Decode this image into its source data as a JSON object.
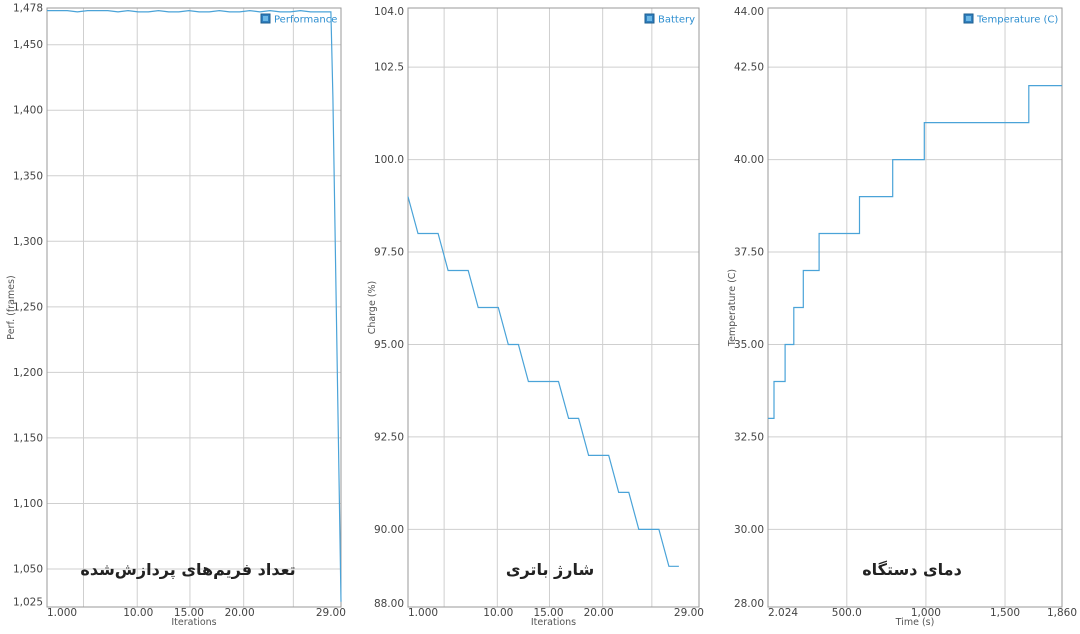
{
  "colors": {
    "series": "#4aa3d8",
    "grid": "#cfcfcf",
    "frame": "#9a9a9a",
    "legend_fill": "#2f7fbf",
    "legend_text": "#2f8fd0"
  },
  "chart_data": [
    {
      "type": "line",
      "title": "",
      "caption": "تعداد فریم‌های پردازش‌شده",
      "xlabel": "Iterations",
      "ylabel": "Perf. (frames)",
      "legend": "Performance",
      "legend_position": "top-right",
      "grid": true,
      "xlim": [
        1,
        30
      ],
      "ylim": [
        1021,
        1478
      ],
      "xticks": [
        {
          "v": 1,
          "t": "1.000"
        },
        {
          "v": 10,
          "t": "10.00"
        },
        {
          "v": 15,
          "t": "15.00"
        },
        {
          "v": 20,
          "t": "20.00"
        },
        {
          "v": 29,
          "t": "29.00"
        }
      ],
      "yticks": [
        {
          "v": 1025,
          "t": "1,025"
        },
        {
          "v": 1050,
          "t": "1,050"
        },
        {
          "v": 1100,
          "t": "1,100"
        },
        {
          "v": 1150,
          "t": "1,150"
        },
        {
          "v": 1200,
          "t": "1,200"
        },
        {
          "v": 1250,
          "t": "1,250"
        },
        {
          "v": 1300,
          "t": "1,300"
        },
        {
          "v": 1350,
          "t": "1,350"
        },
        {
          "v": 1400,
          "t": "1,400"
        },
        {
          "v": 1450,
          "t": "1,450"
        },
        {
          "v": 1478,
          "t": "1,478"
        }
      ],
      "xgrid": [
        1,
        4.6,
        9.9,
        15.1,
        20.4,
        25.3,
        30
      ],
      "ygrid": [
        1050,
        1100,
        1150,
        1200,
        1250,
        1300,
        1350,
        1400,
        1450
      ],
      "x": [
        1,
        2,
        3,
        4,
        5,
        6,
        7,
        8,
        9,
        10,
        11,
        12,
        13,
        14,
        15,
        16,
        17,
        18,
        19,
        20,
        21,
        22,
        23,
        24,
        25,
        26,
        27,
        28,
        29,
        29.2,
        30
      ],
      "y": [
        1476,
        1476,
        1476,
        1475,
        1476,
        1476,
        1476,
        1475,
        1476,
        1475,
        1475,
        1476,
        1475,
        1475,
        1476,
        1475,
        1475,
        1476,
        1475,
        1475,
        1476,
        1475,
        1476,
        1475,
        1475,
        1476,
        1475,
        1475,
        1475,
        1410,
        1025
      ]
    },
    {
      "type": "line",
      "title": "",
      "caption": "شارژ باتری",
      "xlabel": "Iterations",
      "ylabel": "Charge (%)",
      "legend": "Battery",
      "legend_position": "top-right",
      "grid": true,
      "xlim": [
        1,
        30
      ],
      "ylim": [
        87.9,
        104.1
      ],
      "xticks": [
        {
          "v": 1,
          "t": "1.000"
        },
        {
          "v": 10,
          "t": "10.00"
        },
        {
          "v": 15,
          "t": "15.00"
        },
        {
          "v": 20,
          "t": "20.00"
        },
        {
          "v": 29,
          "t": "29.00"
        }
      ],
      "yticks": [
        {
          "v": 88,
          "t": "88.00"
        },
        {
          "v": 90,
          "t": "90.00"
        },
        {
          "v": 92.5,
          "t": "92.50"
        },
        {
          "v": 95,
          "t": "95.00"
        },
        {
          "v": 97.5,
          "t": "97.50"
        },
        {
          "v": 100,
          "t": "100.0"
        },
        {
          "v": 102.5,
          "t": "102.5"
        },
        {
          "v": 104,
          "t": "104.0"
        }
      ],
      "xgrid": [
        1,
        4.6,
        9.9,
        15.1,
        20.4,
        25.3,
        30
      ],
      "ygrid": [
        90,
        92.5,
        95,
        97.5,
        100,
        102.5
      ],
      "x": [
        1,
        2,
        4,
        5,
        7,
        8,
        10,
        11,
        12,
        13,
        16,
        17,
        18,
        19,
        21,
        22,
        23,
        24,
        26,
        27,
        28
      ],
      "y": [
        99,
        98,
        98,
        97,
        97,
        96,
        96,
        95,
        95,
        94,
        94,
        93,
        93,
        92,
        92,
        91,
        91,
        90,
        90,
        89,
        89
      ]
    },
    {
      "type": "line",
      "title": "",
      "caption": "دمای دستگاه",
      "xlabel": "Time (s)",
      "ylabel": "Temperature (C)",
      "legend": "Temperature (C)",
      "legend_position": "top-right",
      "grid": true,
      "xlim": [
        2.024,
        1860
      ],
      "ylim": [
        27.9,
        44.1
      ],
      "xticks": [
        {
          "v": 2.024,
          "t": "2.024"
        },
        {
          "v": 500,
          "t": "500.0"
        },
        {
          "v": 1000,
          "t": "1,000"
        },
        {
          "v": 1500,
          "t": "1,500"
        },
        {
          "v": 1860,
          "t": "1,860"
        }
      ],
      "yticks": [
        {
          "v": 28,
          "t": "28.00"
        },
        {
          "v": 30,
          "t": "30.00"
        },
        {
          "v": 32.5,
          "t": "32.50"
        },
        {
          "v": 35,
          "t": "35.00"
        },
        {
          "v": 37.5,
          "t": "37.50"
        },
        {
          "v": 40,
          "t": "40.00"
        },
        {
          "v": 42.5,
          "t": "42.50"
        },
        {
          "v": 44,
          "t": "44.00"
        }
      ],
      "xgrid": [
        2.024,
        500,
        1000,
        1500
      ],
      "ygrid": [
        30,
        32.5,
        35,
        37.5,
        40,
        42.5
      ],
      "x": [
        2.024,
        40,
        40,
        110,
        110,
        165,
        165,
        225,
        225,
        325,
        325,
        580,
        580,
        790,
        790,
        990,
        990,
        1650,
        1650,
        1860
      ],
      "y": [
        33,
        33,
        34,
        34,
        35,
        35,
        36,
        36,
        37,
        37,
        38,
        38,
        39,
        39,
        40,
        40,
        41,
        41,
        42,
        42
      ]
    }
  ]
}
